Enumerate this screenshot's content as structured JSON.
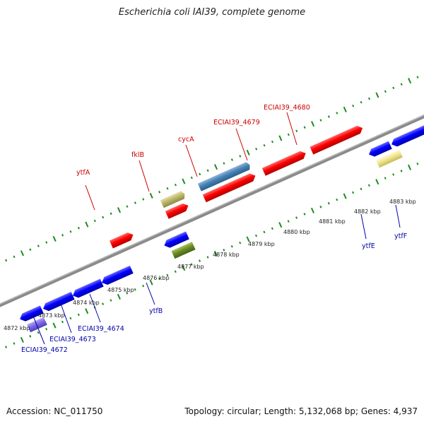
{
  "title": "Escherichia coli IAI39, complete genome",
  "footer": {
    "accession": "Accession: NC_011750",
    "topology": "Topology: circular; Length: 5,132,068 bp; Genes: 4,937"
  },
  "colors": {
    "backbone": "#808080",
    "tick": "#1e8c1e",
    "label_top": "#cc0000",
    "label_bottom": "#0000aa"
  },
  "scale_labels": [
    "4872 kbp",
    "4873 kbp",
    "4874 kbp",
    "4875 kbp",
    "4876 kbp",
    "4877 kbp",
    "4878 kbp",
    "4879 kbp",
    "4880 kbp",
    "4881 kbp",
    "4882 kbp",
    "4883 kbp"
  ],
  "top_labels": [
    "ytfA",
    "fklB",
    "cycA",
    "ECIAI39_4679",
    "ECIAI39_4680"
  ],
  "bottom_labels": [
    "ECIAI39_4672",
    "ECIAI39_4673",
    "ECIAI39_4674",
    "ytfB",
    "ytfE",
    "ytfF"
  ]
}
